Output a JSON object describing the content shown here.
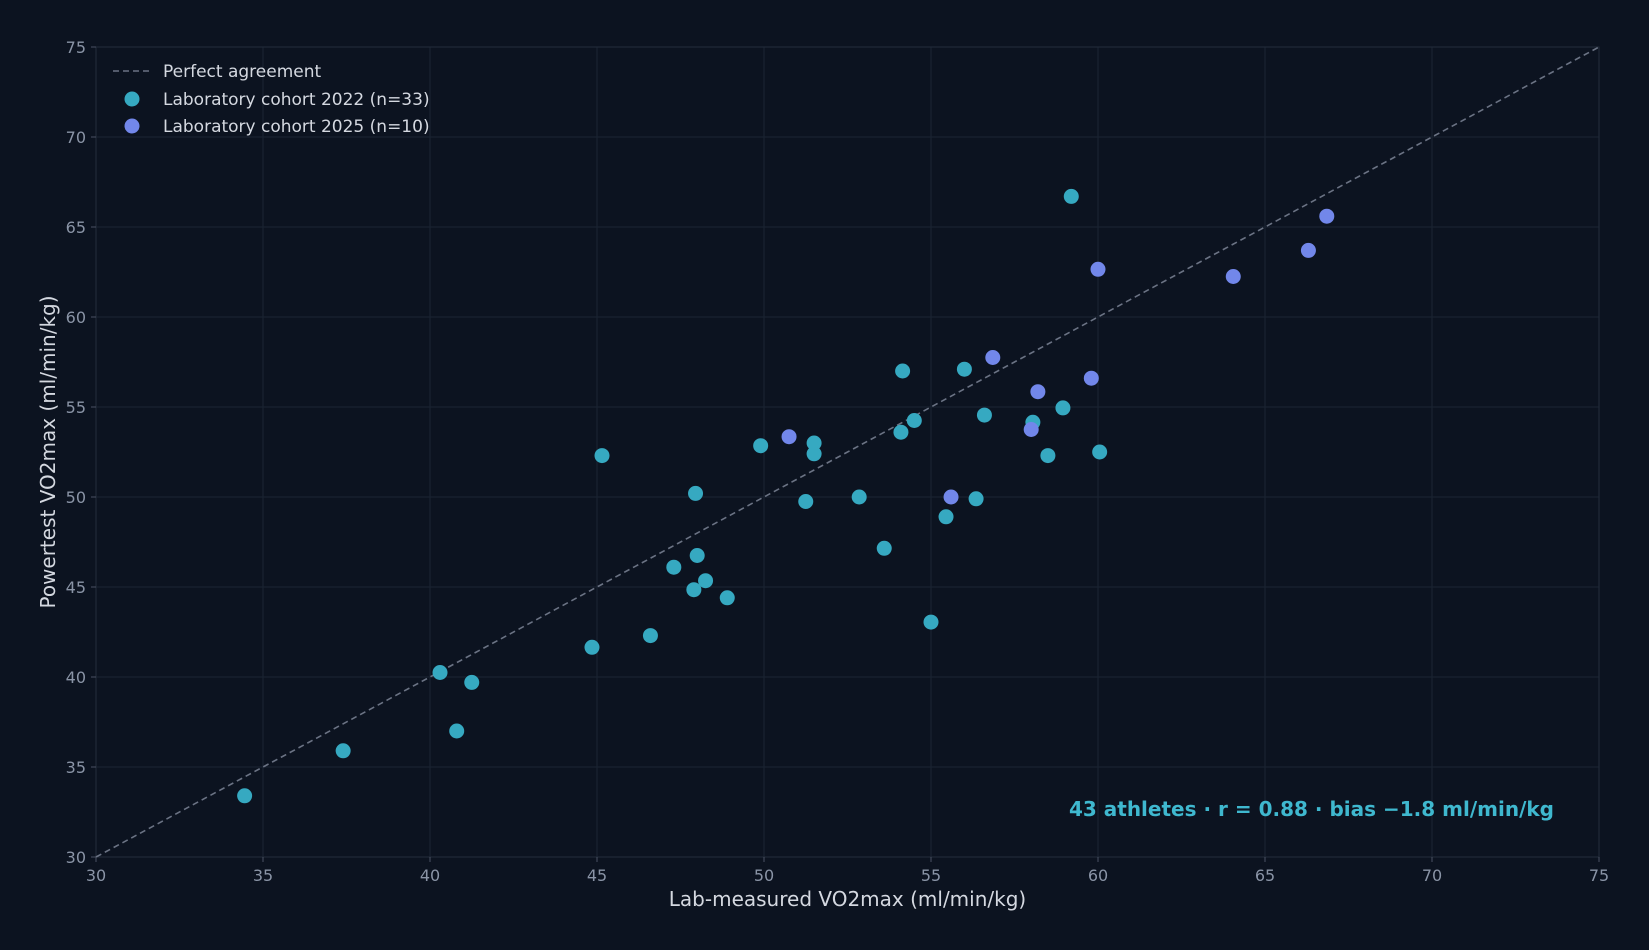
{
  "chart_data": {
    "type": "scatter",
    "title": "",
    "xlabel": "Lab-measured VO2max  (ml/min/kg)",
    "ylabel": "Powertest VO2max  (ml/min/kg)",
    "xlim": [
      30,
      75
    ],
    "ylim": [
      30,
      75
    ],
    "xticks": [
      30,
      35,
      40,
      45,
      50,
      55,
      60,
      65,
      70,
      75
    ],
    "yticks": [
      30,
      35,
      40,
      45,
      50,
      55,
      60,
      65,
      70,
      75
    ],
    "grid": true,
    "legend_position": "top-left",
    "reference_line": {
      "name": "Perfect agreement",
      "x": [
        30,
        75
      ],
      "y": [
        30,
        75
      ],
      "color": "#6b7384"
    },
    "series": [
      {
        "name": "Laboratory cohort 2022 (n=33)",
        "color": "#36a9c1",
        "points": [
          [
            34.45,
            33.4
          ],
          [
            37.4,
            35.9
          ],
          [
            40.3,
            40.25
          ],
          [
            40.8,
            37.0
          ],
          [
            41.25,
            39.7
          ],
          [
            44.85,
            41.65
          ],
          [
            45.15,
            52.3
          ],
          [
            46.6,
            42.3
          ],
          [
            47.3,
            46.1
          ],
          [
            47.9,
            44.85
          ],
          [
            47.95,
            50.2
          ],
          [
            48.0,
            46.75
          ],
          [
            48.25,
            45.35
          ],
          [
            48.9,
            44.4
          ],
          [
            49.9,
            52.85
          ],
          [
            51.25,
            49.75
          ],
          [
            51.5,
            53.0
          ],
          [
            51.5,
            52.4
          ],
          [
            52.85,
            50.0
          ],
          [
            53.6,
            47.15
          ],
          [
            54.1,
            53.6
          ],
          [
            54.15,
            57.0
          ],
          [
            54.5,
            54.25
          ],
          [
            55.0,
            43.05
          ],
          [
            55.45,
            48.9
          ],
          [
            56.0,
            57.1
          ],
          [
            56.35,
            49.9
          ],
          [
            56.6,
            54.55
          ],
          [
            58.05,
            54.15
          ],
          [
            58.5,
            52.3
          ],
          [
            58.95,
            54.95
          ],
          [
            59.2,
            66.7
          ],
          [
            60.05,
            52.5
          ]
        ]
      },
      {
        "name": "Laboratory cohort 2025 (n=10)",
        "color": "#7287ea",
        "points": [
          [
            50.75,
            53.35
          ],
          [
            55.6,
            50.0
          ],
          [
            56.85,
            57.75
          ],
          [
            58.0,
            53.75
          ],
          [
            58.2,
            55.85
          ],
          [
            59.8,
            56.6
          ],
          [
            60.0,
            62.65
          ],
          [
            64.05,
            62.25
          ],
          [
            66.3,
            63.7
          ],
          [
            66.85,
            65.6
          ]
        ]
      }
    ],
    "annotation": "43 athletes  ·  r = 0.88  ·  bias −1.8 ml/min/kg"
  }
}
